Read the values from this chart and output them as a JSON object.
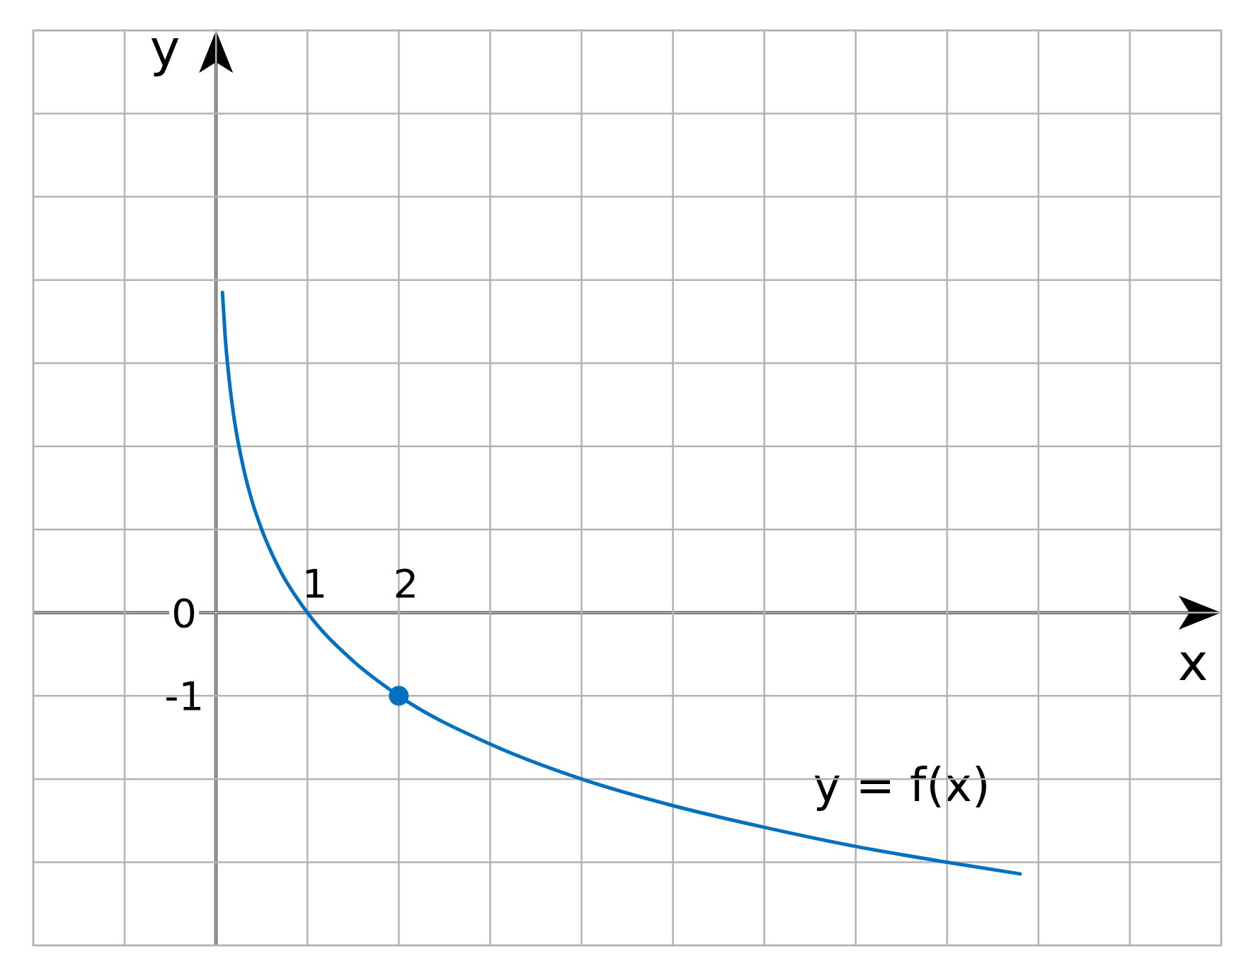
{
  "chart_data": {
    "type": "line",
    "xlabel": "x",
    "ylabel": "y",
    "xlim": [
      -2,
      11
    ],
    "ylim": [
      -4,
      7
    ],
    "xticks": [
      {
        "value": -2,
        "label": null
      },
      {
        "value": -1,
        "label": null
      },
      {
        "value": 0,
        "label": null
      },
      1,
      2,
      {
        "value": 3,
        "label": null
      },
      {
        "value": 4,
        "label": null
      },
      {
        "value": 5,
        "label": null
      },
      {
        "value": 6,
        "label": null
      },
      {
        "value": 7,
        "label": null
      },
      {
        "value": 8,
        "label": null
      },
      {
        "value": 9,
        "label": null
      },
      {
        "value": 10,
        "label": null
      },
      {
        "value": 11,
        "label": null
      }
    ],
    "yticks": [
      {
        "value": -4,
        "label": null
      },
      {
        "value": -3,
        "label": null
      },
      {
        "value": -2,
        "label": null
      },
      -1,
      0,
      {
        "value": 1,
        "label": null
      },
      {
        "value": 2,
        "label": null
      },
      {
        "value": 3,
        "label": null
      },
      {
        "value": 4,
        "label": null
      },
      {
        "value": 5,
        "label": null
      },
      {
        "value": 6,
        "label": null
      },
      {
        "value": 7,
        "label": null
      }
    ],
    "grid": true,
    "series": [
      {
        "name": "y = f(x)",
        "color": "#0070c0",
        "marker": "none",
        "x": [
          0.07,
          0.1,
          0.15,
          0.2,
          0.3,
          0.4,
          0.5,
          0.7,
          1,
          1.5,
          2,
          3,
          4,
          5,
          6,
          7,
          8,
          8.8
        ],
        "values": [
          3.85,
          3.32,
          2.74,
          2.32,
          1.74,
          1.32,
          1,
          0.51,
          0,
          -0.58,
          -1,
          -1.58,
          -2,
          -2.32,
          -2.58,
          -2.81,
          -3,
          -3.14
        ]
      },
      {
        "type": "scatter",
        "color": "#0070c0",
        "marker": "circle",
        "x": [
          2
        ],
        "values": [
          -1
        ]
      }
    ]
  }
}
